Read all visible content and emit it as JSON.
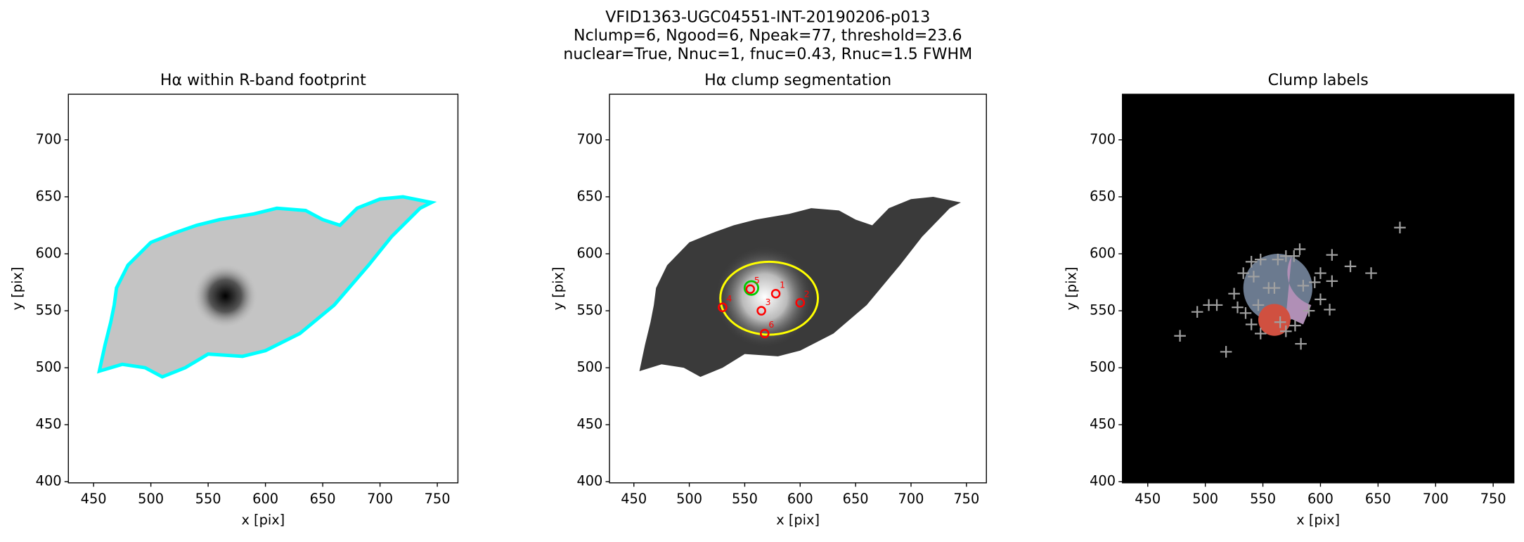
{
  "title_lines": [
    "VFID1363-UGC04551-INT-20190206-p013",
    "Nclump=6, Ngood=6, Npeak=77, threshold=23.6",
    "nuclear=True, Nnuc=1, fnuc=0.43, Rnuc=1.5 FWHM"
  ],
  "chart_data": [
    {
      "type": "image",
      "title": "Hα within R-band footprint",
      "xlabel": "x [pix]",
      "ylabel": "y [pix]",
      "xlim": [
        428,
        768
      ],
      "ylim": [
        399,
        740
      ],
      "xticks": [
        450,
        500,
        550,
        600,
        650,
        700,
        750
      ],
      "yticks": [
        400,
        450,
        500,
        550,
        600,
        650,
        700
      ]
    },
    {
      "type": "image",
      "title": "Hα clump segmentation",
      "xlabel": "x [pix]",
      "ylabel": "y [pix]",
      "xlim": [
        428,
        768
      ],
      "ylim": [
        399,
        740
      ],
      "xticks": [
        450,
        500,
        550,
        600,
        650,
        700,
        750
      ],
      "yticks": [
        400,
        450,
        500,
        550,
        600,
        650,
        700
      ],
      "points": {
        "color": "#ff0000",
        "x": [
          555,
          578,
          600,
          530,
          565,
          568
        ],
        "y": [
          569,
          565,
          557,
          553,
          550,
          530
        ],
        "labels": [
          "5",
          "1",
          "2",
          "4",
          "3",
          "6"
        ]
      },
      "nucleus": {
        "color": "#00cc00",
        "x": 556,
        "y": 570
      }
    },
    {
      "type": "image",
      "title": "Clump labels",
      "xlabel": "x [pix]",
      "ylabel": "y [pix]",
      "xlim": [
        428,
        768
      ],
      "ylim": [
        399,
        740
      ],
      "xticks": [
        450,
        500,
        550,
        600,
        650,
        700,
        750
      ],
      "yticks": [
        400,
        450,
        500,
        550,
        600,
        650,
        700
      ],
      "points": {
        "color": "#a0a0a0",
        "x": [
          669,
          644,
          626,
          610,
          610,
          608,
          582,
          577,
          570,
          563,
          548,
          540,
          533,
          525,
          528,
          503,
          510,
          493,
          478,
          518,
          540,
          548,
          555,
          560,
          565,
          578,
          583,
          585,
          595,
          600,
          542,
          535,
          570,
          590,
          546,
          600
        ],
        "y": [
          623,
          583,
          589,
          599,
          576,
          551,
          604,
          598,
          598,
          595,
          595,
          593,
          583,
          565,
          553,
          555,
          555,
          549,
          528,
          514,
          538,
          530,
          570,
          570,
          540,
          537,
          521,
          572,
          575,
          560,
          580,
          548,
          532,
          550,
          555,
          583
        ]
      }
    }
  ]
}
